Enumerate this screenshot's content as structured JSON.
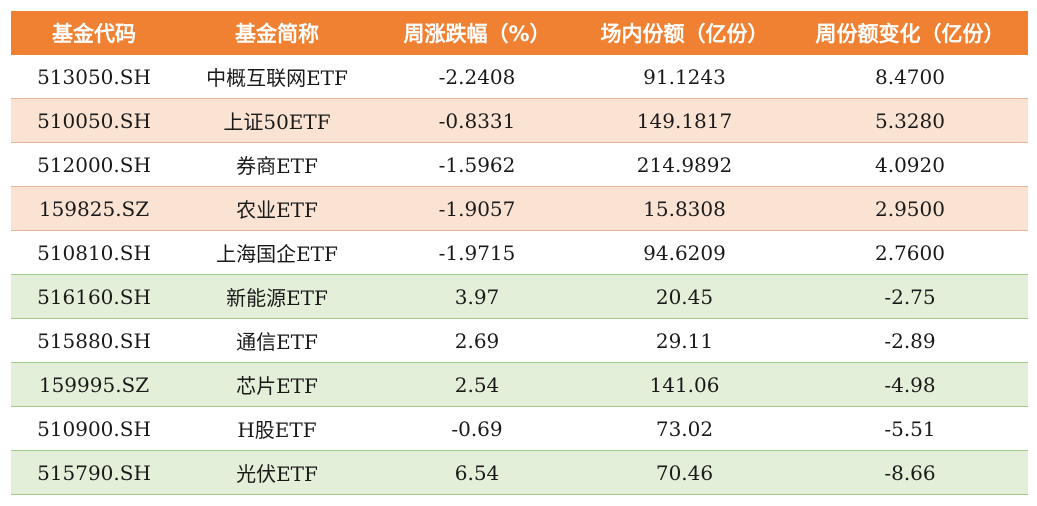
{
  "table": {
    "headers": [
      "基金代码",
      "基金简称",
      "周涨跌幅（%）",
      "场内份额（亿份）",
      "周份额变化（亿份）"
    ],
    "rows": [
      {
        "code": "513050.SH",
        "name": "中概互联网ETF",
        "weekly_change": "-2.2408",
        "shares": "91.1243",
        "share_change": "8.4700",
        "bg": "white"
      },
      {
        "code": "510050.SH",
        "name": "上证50ETF",
        "weekly_change": "-0.8331",
        "shares": "149.1817",
        "share_change": "5.3280",
        "bg": "peach"
      },
      {
        "code": "512000.SH",
        "name": "券商ETF",
        "weekly_change": "-1.5962",
        "shares": "214.9892",
        "share_change": "4.0920",
        "bg": "white"
      },
      {
        "code": "159825.SZ",
        "name": "农业ETF",
        "weekly_change": "-1.9057",
        "shares": "15.8308",
        "share_change": "2.9500",
        "bg": "peach"
      },
      {
        "code": "510810.SH",
        "name": "上海国企ETF",
        "weekly_change": "-1.9715",
        "shares": "94.6209",
        "share_change": "2.7600",
        "bg": "white"
      },
      {
        "code": "516160.SH",
        "name": "新能源ETF",
        "weekly_change": "3.97",
        "shares": "20.45",
        "share_change": "-2.75",
        "bg": "green"
      },
      {
        "code": "515880.SH",
        "name": "通信ETF",
        "weekly_change": "2.69",
        "shares": "29.11",
        "share_change": "-2.89",
        "bg": "white"
      },
      {
        "code": "159995.SZ",
        "name": "芯片ETF",
        "weekly_change": "2.54",
        "shares": "141.06",
        "share_change": "-4.98",
        "bg": "green"
      },
      {
        "code": "510900.SH",
        "name": "H股ETF",
        "weekly_change": "-0.69",
        "shares": "73.02",
        "share_change": "-5.51",
        "bg": "white"
      },
      {
        "code": "515790.SH",
        "name": "光伏ETF",
        "weekly_change": "6.54",
        "shares": "70.46",
        "share_change": "-8.66",
        "bg": "green"
      }
    ]
  },
  "colors": {
    "header_bg": "#f08132",
    "peach_row": "#fbe3d4",
    "green_row": "#e4efda"
  }
}
